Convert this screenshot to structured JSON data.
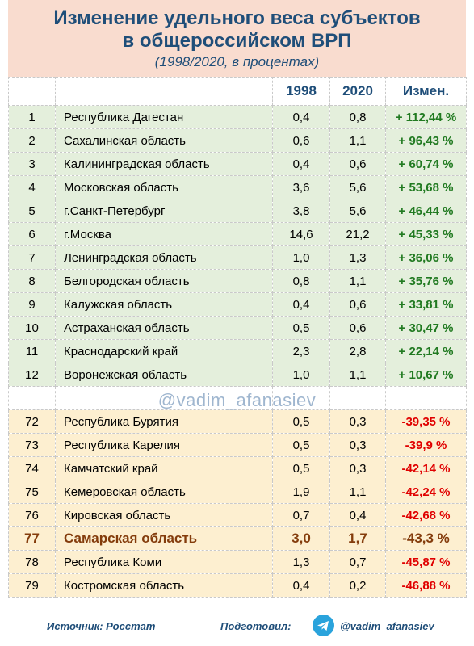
{
  "header": {
    "title_line1": "Изменение удельного веса субъектов",
    "title_line2": "в общероссийском ВРП",
    "subtitle": "(1998/2020, в процентах)"
  },
  "table": {
    "columns": [
      "",
      "",
      "1998",
      "2020",
      "Измен."
    ],
    "top_rows": [
      {
        "rank": "1",
        "name": "Республика Дагестан",
        "y1998": "0,4",
        "y2020": "0,8",
        "change": "+ 112,44 %"
      },
      {
        "rank": "2",
        "name": "Сахалинская область",
        "y1998": "0,6",
        "y2020": "1,1",
        "change": "+ 96,43 %"
      },
      {
        "rank": "3",
        "name": "Калининградская область",
        "y1998": "0,4",
        "y2020": "0,6",
        "change": "+ 60,74 %"
      },
      {
        "rank": "4",
        "name": "Московская область",
        "y1998": "3,6",
        "y2020": "5,6",
        "change": "+ 53,68 %"
      },
      {
        "rank": "5",
        "name": "г.Санкт-Петербург",
        "y1998": "3,8",
        "y2020": "5,6",
        "change": "+ 46,44 %"
      },
      {
        "rank": "6",
        "name": "г.Москва",
        "y1998": "14,6",
        "y2020": "21,2",
        "change": "+ 45,33 %"
      },
      {
        "rank": "7",
        "name": "Ленинградская область",
        "y1998": "1,0",
        "y2020": "1,3",
        "change": "+ 36,06 %"
      },
      {
        "rank": "8",
        "name": "Белгородская область",
        "y1998": "0,8",
        "y2020": "1,1",
        "change": "+ 35,76 %"
      },
      {
        "rank": "9",
        "name": "Калужская область",
        "y1998": "0,4",
        "y2020": "0,6",
        "change": "+ 33,81 %"
      },
      {
        "rank": "10",
        "name": "Астраханская область",
        "y1998": "0,5",
        "y2020": "0,6",
        "change": "+ 30,47 %"
      },
      {
        "rank": "11",
        "name": "Краснодарский край",
        "y1998": "2,3",
        "y2020": "2,8",
        "change": "+ 22,14 %"
      },
      {
        "rank": "12",
        "name": "Воронежская область",
        "y1998": "1,0",
        "y2020": "1,1",
        "change": "+ 10,67 %"
      }
    ],
    "bottom_rows": [
      {
        "rank": "72",
        "name": "Республика Бурятия",
        "y1998": "0,5",
        "y2020": "0,3",
        "change": "-39,35 %"
      },
      {
        "rank": "73",
        "name": "Республика Карелия",
        "y1998": "0,5",
        "y2020": "0,3",
        "change": "-39,9 %"
      },
      {
        "rank": "74",
        "name": "Камчатский край",
        "y1998": "0,5",
        "y2020": "0,3",
        "change": "-42,14 %"
      },
      {
        "rank": "75",
        "name": "Кемеровская область",
        "y1998": "1,9",
        "y2020": "1,1",
        "change": "-42,24 %"
      },
      {
        "rank": "76",
        "name": "Кировская область",
        "y1998": "0,7",
        "y2020": "0,4",
        "change": "-42,68 %"
      },
      {
        "rank": "77",
        "name": "Самарская область",
        "y1998": "3,0",
        "y2020": "1,7",
        "change": "-43,3 %",
        "highlight": true
      },
      {
        "rank": "78",
        "name": "Республика Коми",
        "y1998": "1,3",
        "y2020": "0,7",
        "change": "-45,87 %"
      },
      {
        "rank": "79",
        "name": "Костромская область",
        "y1998": "0,4",
        "y2020": "0,2",
        "change": "-46,88 %"
      }
    ]
  },
  "watermark": "@vadim_afanasiev",
  "footer": {
    "source": "Источник: Росстат",
    "prepared": "Подготовил:",
    "handle": "@vadim_afanasiev",
    "icon": "telegram-icon"
  },
  "colors": {
    "title": "#1f4e79",
    "header_bg": "#f9dccf",
    "top_bg": "#e4efdc",
    "bottom_bg": "#fdefd0",
    "positive": "#217a21",
    "negative": "#e00000",
    "highlight": "#843c0c"
  }
}
